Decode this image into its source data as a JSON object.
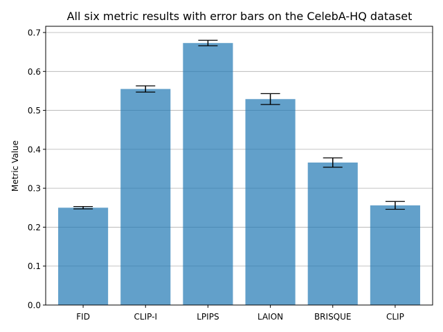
{
  "chart_data": {
    "type": "bar",
    "title": "All six metric results with error bars on the CelebA-HQ dataset",
    "xlabel": "",
    "ylabel": "Metric Value",
    "categories": [
      "FID",
      "CLIP-I",
      "LPIPS",
      "LAION",
      "BRISQUE",
      "CLIP"
    ],
    "values": [
      0.25,
      0.555,
      0.673,
      0.529,
      0.366,
      0.256
    ],
    "errors": [
      0.003,
      0.008,
      0.007,
      0.014,
      0.012,
      0.01
    ],
    "ylim": [
      0,
      0.716
    ],
    "yticks": [
      "0.0",
      "0.1",
      "0.2",
      "0.3",
      "0.4",
      "0.5",
      "0.6",
      "0.7"
    ],
    "grid": "y",
    "legend": "none",
    "bar_color": "#1f77b4",
    "bar_alpha": 0.7,
    "error_color": "#000000",
    "grid_color": "#b0b0b0"
  }
}
